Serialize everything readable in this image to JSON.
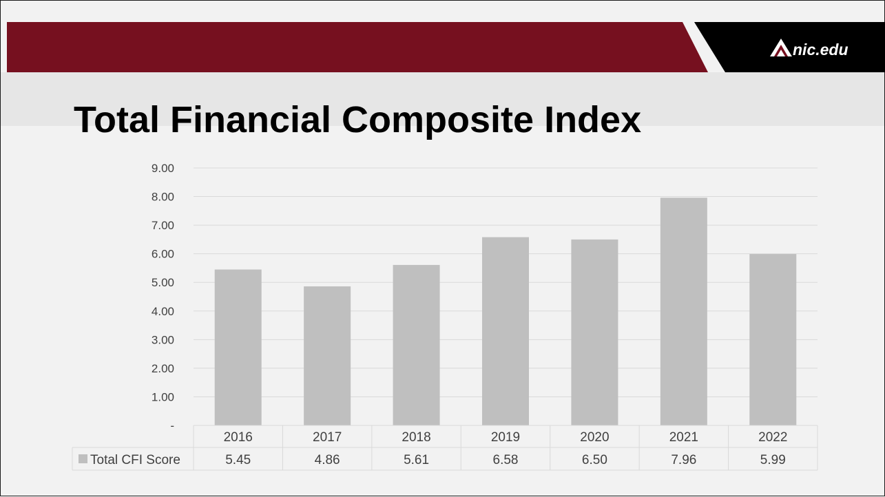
{
  "header": {
    "logo_text": "nic.edu",
    "brand_color": "#76101f",
    "logo_icon": "mountain-icon"
  },
  "slide": {
    "title": "Total Financial Composite Index"
  },
  "chart_data": {
    "type": "bar",
    "categories": [
      "2016",
      "2017",
      "2018",
      "2019",
      "2020",
      "2021",
      "2022"
    ],
    "series": [
      {
        "name": "Total CFI Score",
        "values": [
          5.45,
          4.86,
          5.61,
          6.58,
          6.5,
          7.96,
          5.99
        ],
        "labels": [
          "5.45",
          "4.86",
          "5.61",
          "6.58",
          "6.50",
          "7.96",
          "5.99"
        ],
        "color": "#bfbfbf"
      }
    ],
    "ylim": [
      0,
      9
    ],
    "yticks": [
      0,
      1,
      2,
      3,
      4,
      5,
      6,
      7,
      8,
      9
    ],
    "ytick_labels": [
      "-",
      "1.00",
      "2.00",
      "3.00",
      "4.00",
      "5.00",
      "6.00",
      "7.00",
      "8.00",
      "9.00"
    ],
    "grid": true,
    "legend": "data-table",
    "data_table": true
  }
}
